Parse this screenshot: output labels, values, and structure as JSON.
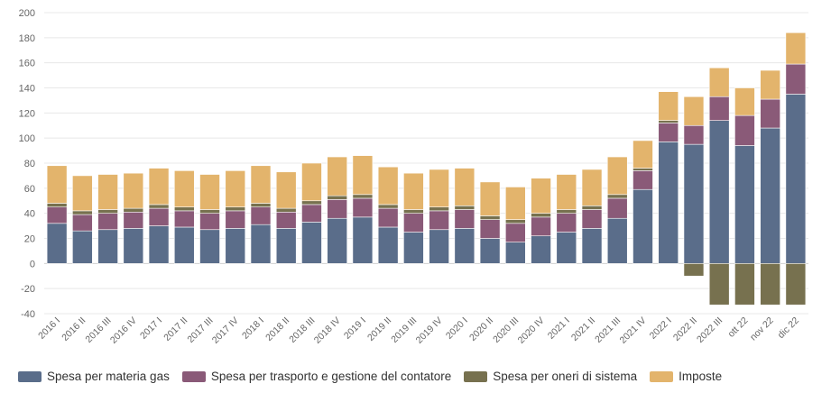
{
  "chart_data": {
    "type": "bar",
    "stacked": true,
    "categories": [
      "2016 I",
      "2016 II",
      "2016 III",
      "2016 IV",
      "2017 I",
      "2017 II",
      "2017 III",
      "2017 IV",
      "2018 I",
      "2018 II",
      "2018 III",
      "2018 IV",
      "2019 I",
      "2019 II",
      "2019 III",
      "2019 IV",
      "2020 I",
      "2020 II",
      "2020 III",
      "2020 IV",
      "2021 I",
      "2021 II",
      "2021 III",
      "2021 IV",
      "2022 I",
      "2022 II",
      "2022 III",
      "ott 22",
      "nov 22",
      "dic 22"
    ],
    "series": [
      {
        "name": "Spesa per materia gas",
        "color": "#5a6d8a",
        "values": [
          32,
          26,
          27,
          28,
          30,
          29,
          27,
          28,
          31,
          28,
          33,
          36,
          37,
          29,
          25,
          27,
          28,
          20,
          17,
          22,
          25,
          28,
          36,
          59,
          97,
          95,
          114,
          94,
          108,
          135
        ]
      },
      {
        "name": "Spesa per trasporto e gestione del contatore",
        "color": "#8a5a78",
        "values": [
          13,
          13,
          13,
          13,
          14,
          13,
          13,
          14,
          14,
          13,
          14,
          15,
          15,
          15,
          15,
          15,
          15,
          15,
          15,
          15,
          15,
          15,
          16,
          15,
          15,
          15,
          19,
          24,
          23,
          24
        ]
      },
      {
        "name": "Spesa per oneri di sistema",
        "color": "#77714f",
        "values": [
          3,
          3,
          3,
          3,
          3,
          3,
          3,
          3,
          3,
          3,
          3,
          3,
          3,
          3,
          3,
          3,
          3,
          3,
          3,
          3,
          3,
          3,
          3,
          2,
          2,
          -10,
          -33,
          -33,
          -33,
          -33
        ]
      },
      {
        "name": "Imposte",
        "color": "#e3b46c",
        "values": [
          30,
          28,
          28,
          28,
          29,
          29,
          28,
          29,
          30,
          29,
          30,
          31,
          31,
          30,
          29,
          30,
          30,
          27,
          26,
          28,
          28,
          29,
          30,
          22,
          23,
          23,
          23,
          22,
          23,
          25
        ]
      }
    ],
    "ylim": [
      -40,
      200
    ],
    "yticks": [
      -40,
      -20,
      0,
      20,
      40,
      60,
      80,
      100,
      120,
      140,
      160,
      180,
      200
    ],
    "grid": true,
    "legend_position": "bottom"
  }
}
